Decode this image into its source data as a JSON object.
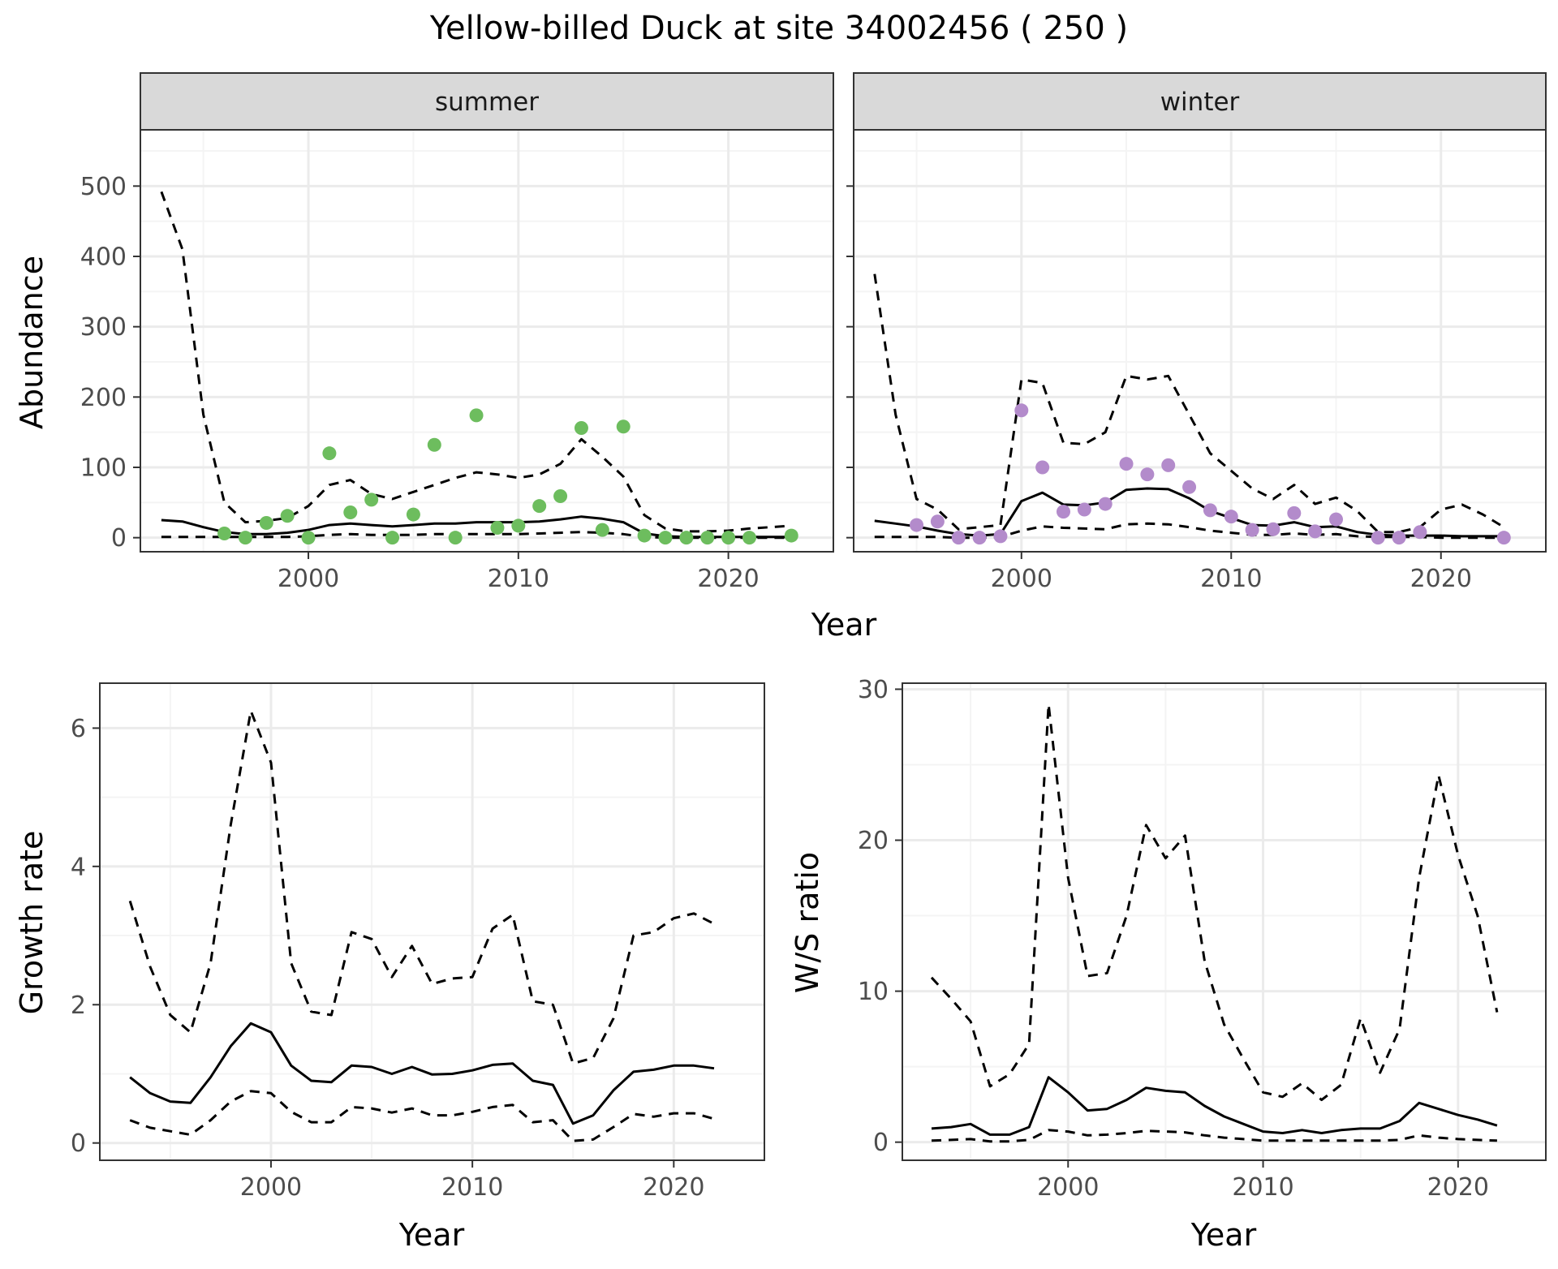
{
  "title": "Yellow-billed Duck at site 34002456 ( 250 )",
  "colors": {
    "summer_points": "#6dbd5e",
    "winter_points": "#b38bcb",
    "strip_fill": "#d9d9d9",
    "grid_major": "#ebebeb",
    "grid_minor": "#f4f4f4",
    "line": "#000000"
  },
  "chart_data": [
    {
      "id": "abundance",
      "type": "line",
      "facet_label": "summer",
      "xlabel": "Year",
      "ylabel": "Abundance",
      "xlim": [
        1992,
        2025
      ],
      "ylim": [
        -20,
        580
      ],
      "xticks": [
        2000,
        2010,
        2020
      ],
      "yticks": [
        0,
        100,
        200,
        300,
        400,
        500
      ],
      "grid": true,
      "mean": {
        "x": [
          1993,
          1994,
          1995,
          1996,
          1997,
          1998,
          1999,
          2000,
          2001,
          2002,
          2003,
          2004,
          2005,
          2006,
          2007,
          2008,
          2009,
          2010,
          2011,
          2012,
          2013,
          2014,
          2015,
          2016,
          2017,
          2018,
          2019,
          2020,
          2021,
          2022,
          2023
        ],
        "y": [
          25,
          23,
          15,
          8,
          5,
          5,
          7,
          11,
          18,
          20,
          18,
          16,
          18,
          20,
          20,
          22,
          22,
          22,
          23,
          26,
          30,
          27,
          22,
          6,
          2,
          1,
          1,
          1,
          1,
          1,
          1
        ]
      },
      "upper": {
        "x": [
          1993,
          1994,
          1995,
          1996,
          1997,
          1998,
          1999,
          2000,
          2001,
          2002,
          2003,
          2004,
          2005,
          2006,
          2007,
          2008,
          2009,
          2010,
          2011,
          2012,
          2013,
          2014,
          2015,
          2016,
          2017,
          2018,
          2019,
          2020,
          2021,
          2022,
          2023
        ],
        "y": [
          492,
          410,
          175,
          50,
          22,
          24,
          28,
          45,
          75,
          82,
          62,
          55,
          65,
          75,
          85,
          93,
          90,
          85,
          90,
          105,
          140,
          115,
          87,
          32,
          13,
          9,
          9,
          10,
          13,
          15,
          17
        ]
      },
      "lower": {
        "x": [
          1993,
          1994,
          1995,
          1996,
          1997,
          1998,
          1999,
          2000,
          2001,
          2002,
          2003,
          2004,
          2005,
          2006,
          2007,
          2008,
          2009,
          2010,
          2011,
          2012,
          2013,
          2014,
          2015,
          2016,
          2017,
          2018,
          2019,
          2020,
          2021,
          2022,
          2023
        ],
        "y": [
          1,
          1,
          1,
          1,
          1,
          1,
          1,
          2,
          4,
          5,
          4,
          4,
          4,
          5,
          5,
          5,
          5,
          5,
          6,
          7,
          8,
          7,
          5,
          1,
          0,
          0,
          0,
          0,
          0,
          0,
          0
        ]
      },
      "points": {
        "x": [
          1996,
          1997,
          1998,
          1999,
          2000,
          2001,
          2002,
          2003,
          2004,
          2005,
          2006,
          2007,
          2008,
          2009,
          2010,
          2011,
          2012,
          2013,
          2014,
          2015,
          2016,
          2017,
          2018,
          2019,
          2020,
          2021,
          2023
        ],
        "y": [
          6,
          0,
          21,
          31,
          0,
          120,
          36,
          54,
          0,
          33,
          132,
          0,
          174,
          14,
          17,
          45,
          59,
          156,
          11,
          158,
          3,
          0,
          0,
          0,
          0,
          0,
          3
        ]
      }
    },
    {
      "id": "abundance-winter",
      "type": "line",
      "facet_label": "winter",
      "xlim": [
        1992,
        2025
      ],
      "ylim": [
        -20,
        580
      ],
      "xticks": [
        2000,
        2010,
        2020
      ],
      "grid": true,
      "mean": {
        "x": [
          1993,
          1994,
          1995,
          1996,
          1997,
          1998,
          1999,
          2000,
          2001,
          2002,
          2003,
          2004,
          2005,
          2006,
          2007,
          2008,
          2009,
          2010,
          2011,
          2012,
          2013,
          2014,
          2015,
          2016,
          2017,
          2018,
          2019,
          2020,
          2021,
          2022,
          2023
        ],
        "y": [
          24,
          20,
          16,
          10,
          5,
          3,
          5,
          52,
          64,
          47,
          46,
          50,
          68,
          70,
          69,
          56,
          38,
          28,
          18,
          17,
          22,
          15,
          16,
          8,
          4,
          3,
          3,
          3,
          2,
          2,
          2
        ]
      },
      "upper": {
        "x": [
          1993,
          1994,
          1995,
          1996,
          1997,
          1998,
          1999,
          2000,
          2001,
          2002,
          2003,
          2004,
          2005,
          2006,
          2007,
          2008,
          2009,
          2010,
          2011,
          2012,
          2013,
          2014,
          2015,
          2016,
          2017,
          2018,
          2019,
          2020,
          2021,
          2022,
          2023
        ],
        "y": [
          375,
          175,
          55,
          40,
          12,
          15,
          18,
          225,
          220,
          135,
          133,
          150,
          230,
          225,
          230,
          175,
          120,
          95,
          70,
          55,
          75,
          48,
          57,
          38,
          8,
          8,
          15,
          40,
          47,
          33,
          15
        ]
      },
      "lower": {
        "x": [
          1993,
          1994,
          1995,
          1996,
          1997,
          1998,
          1999,
          2000,
          2001,
          2002,
          2003,
          2004,
          2005,
          2006,
          2007,
          2008,
          2009,
          2010,
          2011,
          2012,
          2013,
          2014,
          2015,
          2016,
          2017,
          2018,
          2019,
          2020,
          2021,
          2022,
          2023
        ],
        "y": [
          1,
          1,
          1,
          1,
          0,
          0,
          1,
          10,
          16,
          14,
          13,
          12,
          19,
          20,
          19,
          15,
          10,
          7,
          4,
          4,
          6,
          4,
          5,
          2,
          1,
          1,
          1,
          0,
          0,
          0,
          0
        ]
      },
      "points": {
        "x": [
          1995,
          1996,
          1997,
          1998,
          1999,
          2000,
          2001,
          2002,
          2003,
          2004,
          2005,
          2006,
          2007,
          2008,
          2009,
          2010,
          2011,
          2012,
          2013,
          2014,
          2015,
          2017,
          2018,
          2019,
          2023
        ],
        "y": [
          18,
          23,
          0,
          0,
          2,
          181,
          100,
          37,
          40,
          48,
          105,
          90,
          103,
          72,
          39,
          30,
          11,
          12,
          35,
          9,
          26,
          0,
          0,
          8,
          0
        ]
      }
    },
    {
      "id": "growth",
      "type": "line",
      "xlabel": "Year",
      "ylabel": "Growth rate",
      "xlim": [
        1991.5,
        2024.5
      ],
      "ylim": [
        -0.25,
        6.65
      ],
      "xticks": [
        2000,
        2010,
        2020
      ],
      "yticks": [
        0,
        2,
        4,
        6
      ],
      "grid": true,
      "mean": {
        "x": [
          1993,
          1994,
          1995,
          1996,
          1997,
          1998,
          1999,
          2000,
          2001,
          2002,
          2003,
          2004,
          2005,
          2006,
          2007,
          2008,
          2009,
          2010,
          2011,
          2012,
          2013,
          2014,
          2015,
          2016,
          2017,
          2018,
          2019,
          2020,
          2021,
          2022
        ],
        "y": [
          0.95,
          0.72,
          0.6,
          0.58,
          0.95,
          1.4,
          1.73,
          1.6,
          1.12,
          0.9,
          0.88,
          1.12,
          1.1,
          1.0,
          1.1,
          0.99,
          1.0,
          1.05,
          1.13,
          1.15,
          0.9,
          0.84,
          0.28,
          0.4,
          0.76,
          1.03,
          1.06,
          1.12,
          1.12,
          1.08
        ]
      },
      "upper": {
        "x": [
          1993,
          1994,
          1995,
          1996,
          1997,
          1998,
          1999,
          2000,
          2001,
          2002,
          2003,
          2004,
          2005,
          2006,
          2007,
          2008,
          2009,
          2010,
          2011,
          2012,
          2013,
          2014,
          2015,
          2016,
          2017,
          2018,
          2019,
          2020,
          2021,
          2022
        ],
        "y": [
          3.5,
          2.55,
          1.85,
          1.6,
          2.6,
          4.6,
          6.25,
          5.5,
          2.6,
          1.9,
          1.85,
          3.05,
          2.95,
          2.4,
          2.85,
          2.3,
          2.38,
          2.4,
          3.1,
          3.3,
          2.05,
          2.0,
          1.15,
          1.23,
          1.8,
          3.0,
          3.05,
          3.25,
          3.32,
          3.17
        ]
      },
      "lower": {
        "x": [
          1993,
          1994,
          1995,
          1996,
          1997,
          1998,
          1999,
          2000,
          2001,
          2002,
          2003,
          2004,
          2005,
          2006,
          2007,
          2008,
          2009,
          2010,
          2011,
          2012,
          2013,
          2014,
          2015,
          2016,
          2017,
          2018,
          2019,
          2020,
          2021,
          2022
        ],
        "y": [
          0.33,
          0.22,
          0.17,
          0.12,
          0.33,
          0.6,
          0.75,
          0.72,
          0.45,
          0.3,
          0.3,
          0.52,
          0.5,
          0.44,
          0.5,
          0.4,
          0.4,
          0.45,
          0.52,
          0.55,
          0.3,
          0.33,
          0.03,
          0.05,
          0.23,
          0.42,
          0.38,
          0.43,
          0.43,
          0.35
        ]
      }
    },
    {
      "id": "ws-ratio",
      "type": "line",
      "xlabel": "Year",
      "ylabel": "W/S ratio",
      "xlim": [
        1991.5,
        2024.5
      ],
      "ylim": [
        -1.2,
        30.4
      ],
      "xticks": [
        2000,
        2010,
        2020
      ],
      "yticks": [
        0,
        10,
        20,
        30
      ],
      "grid": true,
      "mean": {
        "x": [
          1993,
          1994,
          1995,
          1996,
          1997,
          1998,
          1999,
          2000,
          2001,
          2002,
          2003,
          2004,
          2005,
          2006,
          2007,
          2008,
          2009,
          2010,
          2011,
          2012,
          2013,
          2014,
          2015,
          2016,
          2017,
          2018,
          2019,
          2020,
          2021,
          2022
        ],
        "y": [
          0.9,
          1.0,
          1.2,
          0.5,
          0.5,
          1.0,
          4.3,
          3.3,
          2.1,
          2.2,
          2.8,
          3.6,
          3.4,
          3.3,
          2.4,
          1.7,
          1.2,
          0.7,
          0.6,
          0.8,
          0.6,
          0.8,
          0.9,
          0.9,
          1.4,
          2.6,
          2.2,
          1.8,
          1.5,
          1.1
        ]
      },
      "upper": {
        "x": [
          1993,
          1994,
          1995,
          1996,
          1997,
          1998,
          1999,
          2000,
          2001,
          2002,
          2003,
          2004,
          2005,
          2006,
          2007,
          2008,
          2009,
          2010,
          2011,
          2012,
          2013,
          2014,
          2015,
          2016,
          2017,
          2018,
          2019,
          2020,
          2021,
          2022
        ],
        "y": [
          10.9,
          9.5,
          8.0,
          3.7,
          4.5,
          6.5,
          29.0,
          17.5,
          11.0,
          11.2,
          15.0,
          21.0,
          18.8,
          20.3,
          12.0,
          7.8,
          5.5,
          3.3,
          3.0,
          3.9,
          2.8,
          3.8,
          8.2,
          4.6,
          7.5,
          17.5,
          24.3,
          19.0,
          15.0,
          8.6
        ]
      },
      "lower": {
        "x": [
          1993,
          1994,
          1995,
          1996,
          1997,
          1998,
          1999,
          2000,
          2001,
          2002,
          2003,
          2004,
          2005,
          2006,
          2007,
          2008,
          2009,
          2010,
          2011,
          2012,
          2013,
          2014,
          2015,
          2016,
          2017,
          2018,
          2019,
          2020,
          2021,
          2022
        ],
        "y": [
          0.1,
          0.15,
          0.2,
          0.05,
          0.05,
          0.15,
          0.8,
          0.7,
          0.45,
          0.5,
          0.6,
          0.75,
          0.7,
          0.65,
          0.45,
          0.3,
          0.2,
          0.1,
          0.1,
          0.1,
          0.1,
          0.1,
          0.1,
          0.1,
          0.15,
          0.45,
          0.3,
          0.2,
          0.15,
          0.1
        ]
      }
    }
  ]
}
